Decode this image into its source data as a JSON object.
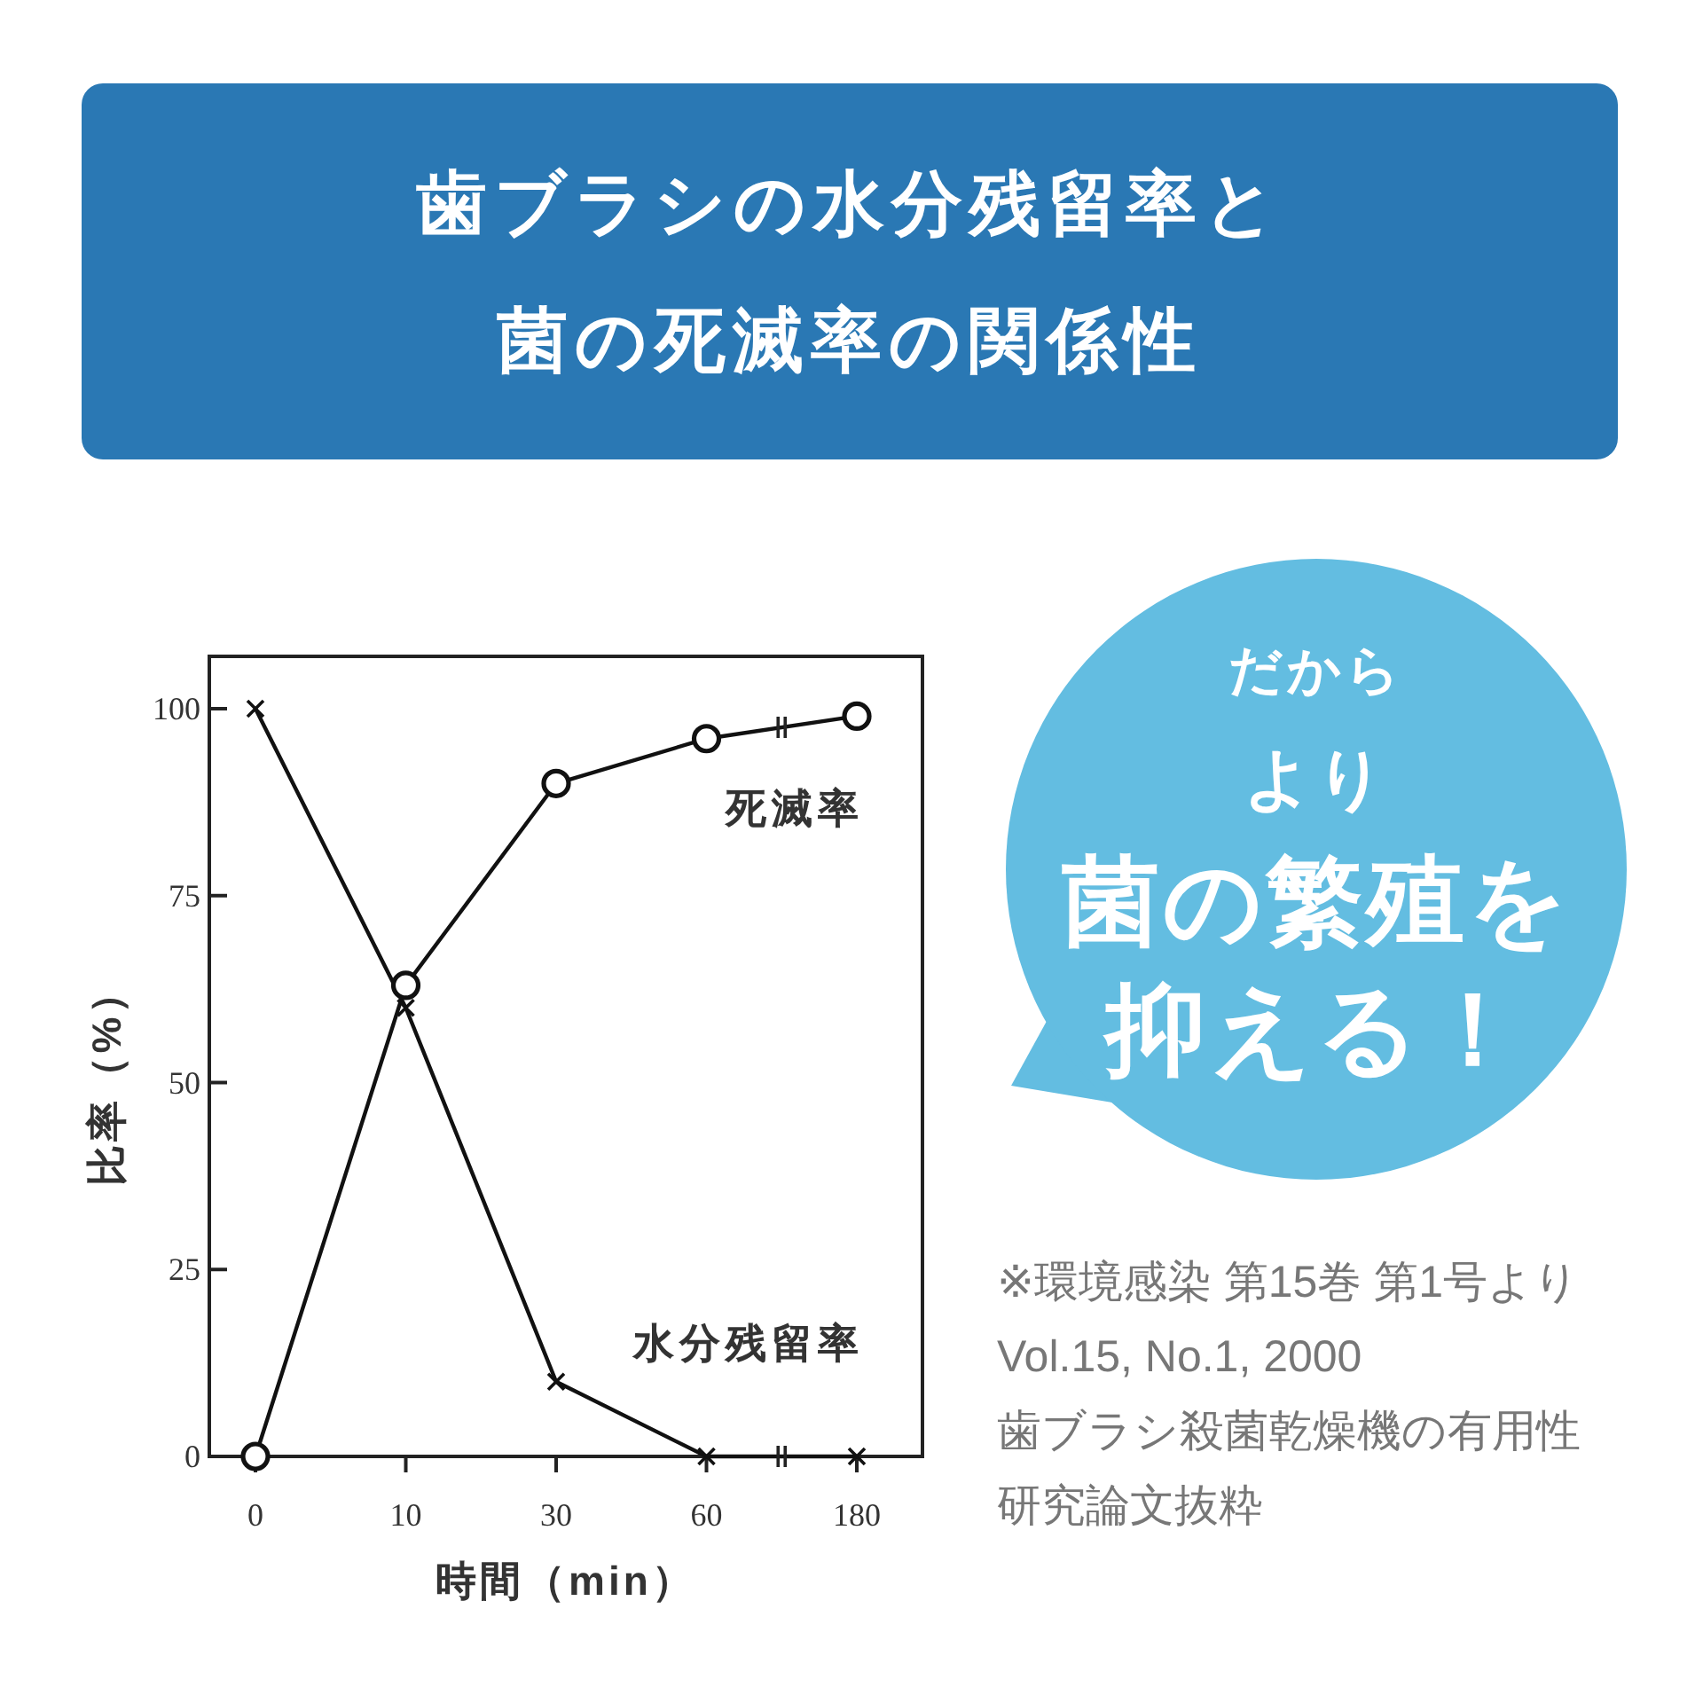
{
  "chart_data": {
    "type": "line",
    "title": "歯ブラシの水分残留率と菌の死滅率の関係性",
    "xlabel": "時間（min）",
    "ylabel": "比率（%）",
    "categories": [
      "0",
      "10",
      "30",
      "60",
      "180"
    ],
    "series": [
      {
        "name": "死滅率",
        "color": "#111111",
        "marker": "circle",
        "values": [
          0,
          63,
          90,
          96,
          99
        ]
      },
      {
        "name": "水分残留率",
        "color": "#111111",
        "marker": "cross",
        "values": [
          100,
          60,
          10,
          0,
          0
        ]
      }
    ],
    "ylim": [
      0,
      107
    ],
    "yticks": [
      0,
      25,
      50,
      75,
      100
    ],
    "line_style": "solid",
    "annotations": [
      "だから",
      "より",
      "菌の繁殖を",
      "抑える！",
      "※環境感染 第15巻 第1号より",
      "Vol.15, No.1, 2000",
      "歯ブラシ殺菌乾燥機の有用性",
      "研究論文抜粋"
    ]
  }
}
